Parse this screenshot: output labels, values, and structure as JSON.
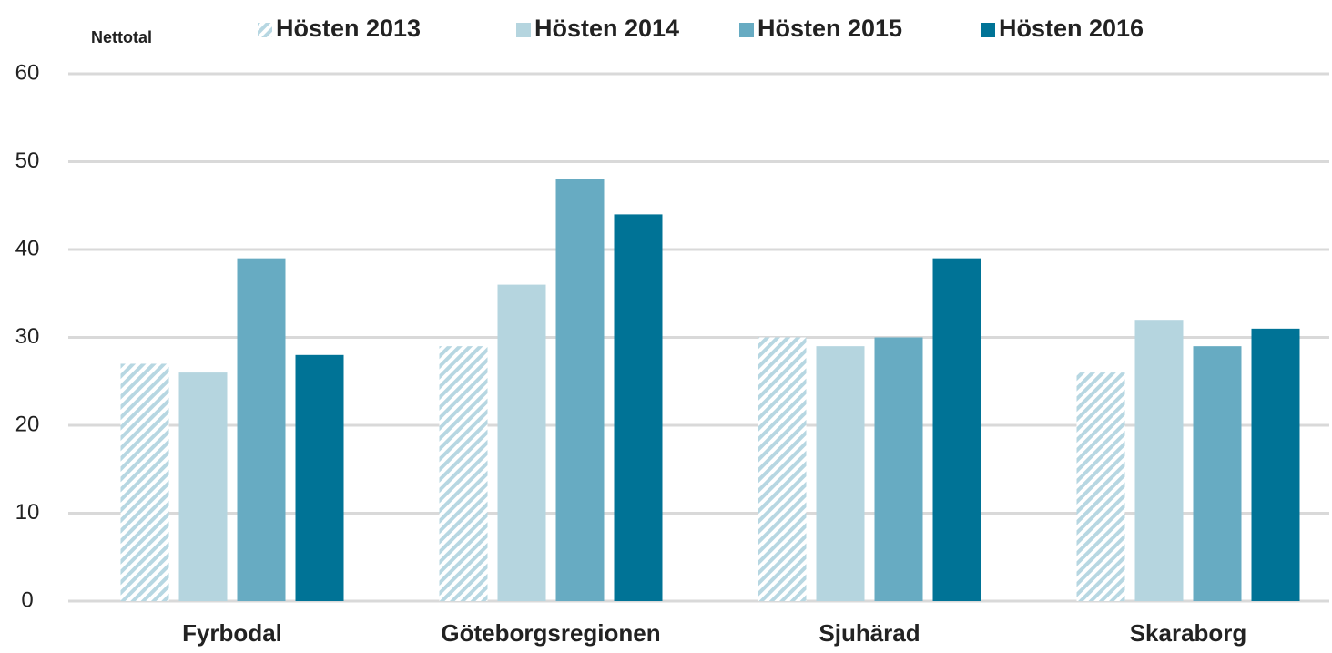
{
  "chart_data": {
    "type": "bar",
    "title": "Nettotal",
    "categories": [
      "Fyrbodal",
      "Göteborgsregionen",
      "Sjuhärad",
      "Skaraborg"
    ],
    "series": [
      {
        "name": "Hösten 2013",
        "color": "#b7d7e2",
        "hatch": true,
        "values": [
          27,
          29,
          30,
          26
        ]
      },
      {
        "name": "Hösten 2014",
        "color": "#b5d5df",
        "values": [
          26,
          36,
          29,
          32
        ]
      },
      {
        "name": "Hösten 2015",
        "color": "#67abc2",
        "values": [
          39,
          48,
          30,
          29
        ]
      },
      {
        "name": "Hösten 2016",
        "color": "#007396",
        "values": [
          28,
          44,
          39,
          31
        ]
      }
    ],
    "ylim": [
      0,
      60
    ],
    "yticks": [
      0,
      10,
      20,
      30,
      40,
      50,
      60
    ],
    "grid": true
  }
}
